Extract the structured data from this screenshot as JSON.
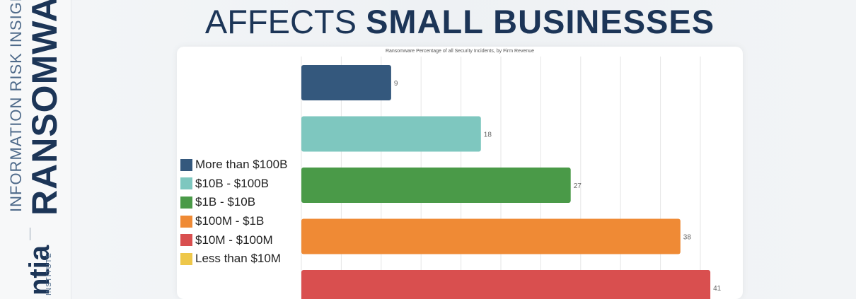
{
  "side_panel": {
    "line1": "INFORMATION RISK INSIGHTS",
    "line2": "RANSOMWA",
    "brand": "ntia",
    "brand_sub": "INSTITUTE"
  },
  "headline": {
    "regular": "AFFECTS ",
    "bold": "SMALL BUSINESSES"
  },
  "chart_data": {
    "type": "bar",
    "orientation": "horizontal",
    "title": "Ransomware Percentage of all Security Incidents, by Firm Revenue",
    "categories": [
      "More than $100B",
      "$10B - $100B",
      "$1B - $10B",
      "$100M - $1B",
      "$10M - $100M",
      "Less than $10M"
    ],
    "values": [
      9,
      18,
      27,
      38,
      41,
      null
    ],
    "value_labels": [
      "9",
      "18",
      "27",
      "38",
      "41",
      ""
    ],
    "colors": [
      "#34587d",
      "#7ec7bf",
      "#4a9a48",
      "#ef8a35",
      "#d94f4f",
      "#eec74a"
    ],
    "xlim": [
      0,
      42
    ],
    "grid": true,
    "legend": "left"
  }
}
